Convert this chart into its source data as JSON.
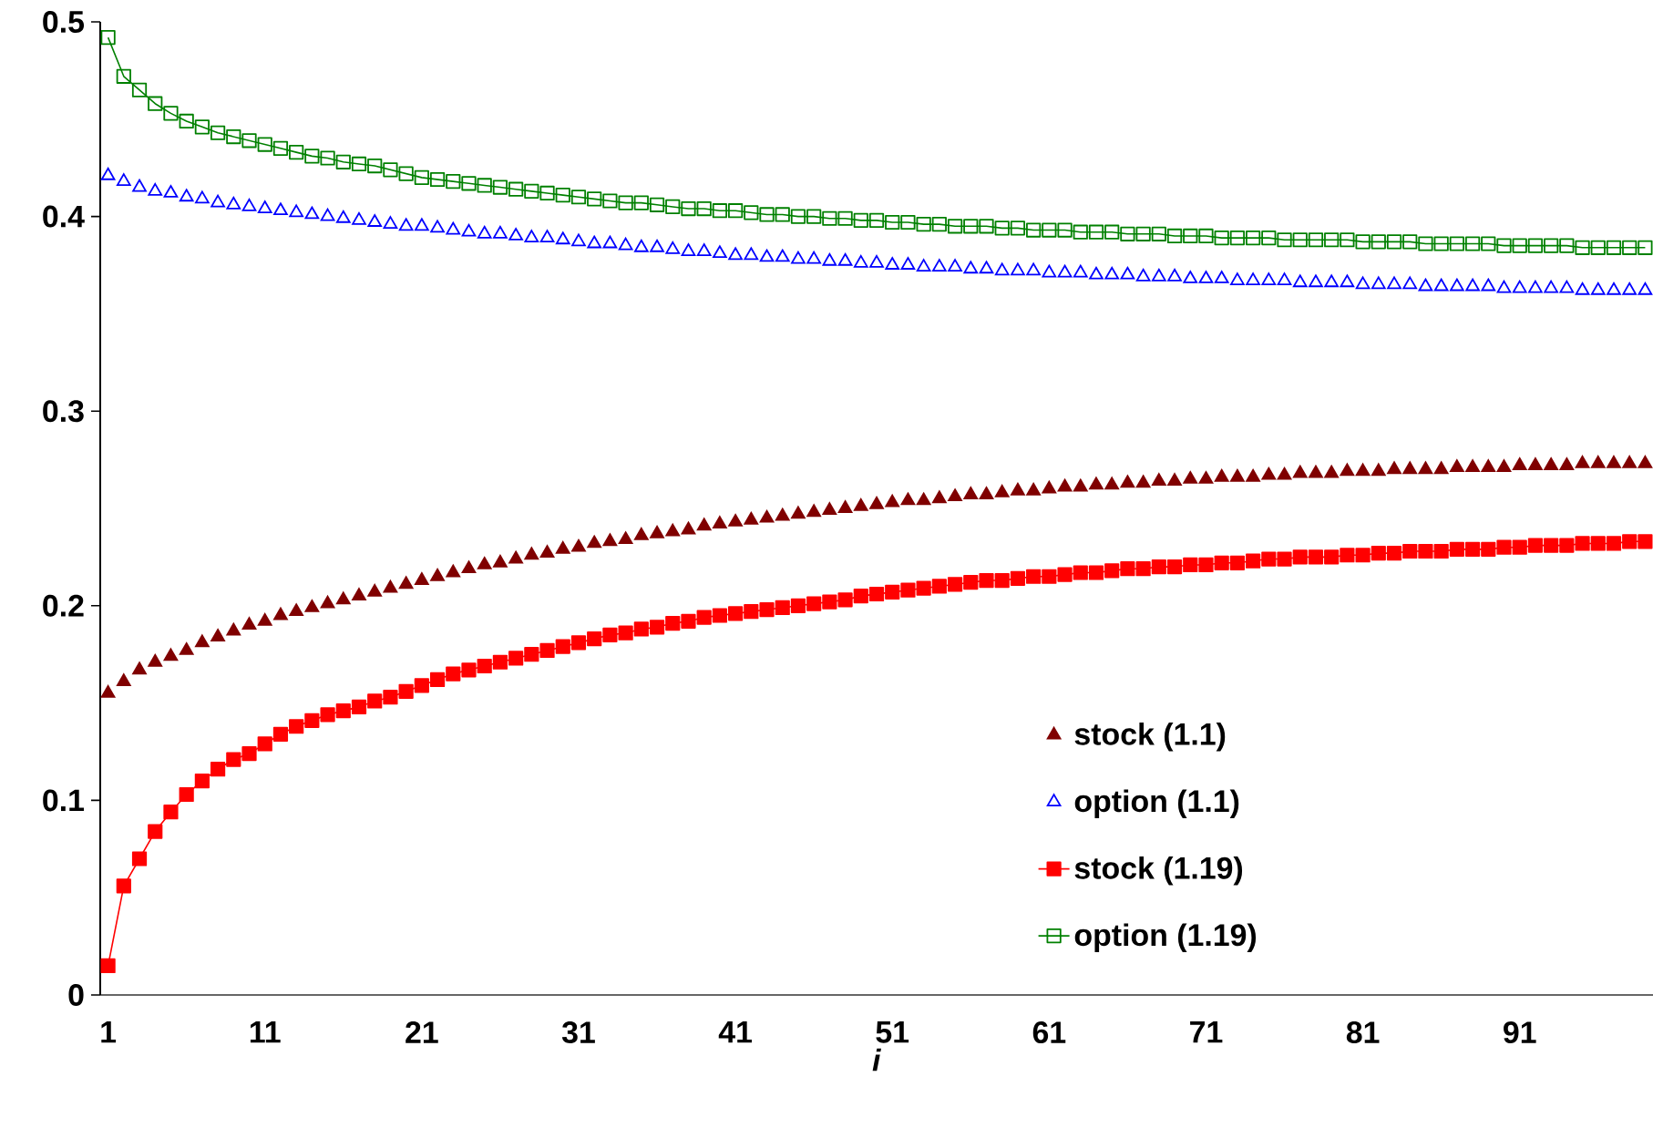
{
  "chart_data": {
    "type": "line",
    "xlabel": "*i*",
    "x": [
      1,
      2,
      3,
      4,
      5,
      6,
      7,
      8,
      9,
      10,
      11,
      12,
      13,
      14,
      15,
      16,
      17,
      18,
      19,
      20,
      21,
      22,
      23,
      24,
      25,
      26,
      27,
      28,
      29,
      30,
      31,
      32,
      33,
      34,
      35,
      36,
      37,
      38,
      39,
      40,
      41,
      42,
      43,
      44,
      45,
      46,
      47,
      48,
      49,
      50,
      51,
      52,
      53,
      54,
      55,
      56,
      57,
      58,
      59,
      60,
      61,
      62,
      63,
      64,
      65,
      66,
      67,
      68,
      69,
      70,
      71,
      72,
      73,
      74,
      75,
      76,
      77,
      78,
      79,
      80,
      81,
      82,
      83,
      84,
      85,
      86,
      87,
      88,
      89,
      90,
      91,
      92,
      93,
      94,
      95,
      96,
      97,
      98,
      99
    ],
    "xlim": [
      0.5,
      99.5
    ],
    "xticks": [
      1,
      11,
      21,
      31,
      41,
      51,
      61,
      71,
      81,
      91
    ],
    "ylim": [
      0,
      0.5
    ],
    "yticks": [
      0,
      0.1,
      0.2,
      0.3,
      0.4,
      0.5
    ],
    "legend": "bottom right",
    "series": [
      {
        "name": "stock (1.1)",
        "type": "scatter",
        "marker": "triangle",
        "color": "#800000",
        "values": [
          0.155,
          0.161,
          0.167,
          0.171,
          0.174,
          0.177,
          0.181,
          0.184,
          0.187,
          0.19,
          0.192,
          0.195,
          0.197,
          0.199,
          0.201,
          0.203,
          0.205,
          0.207,
          0.209,
          0.211,
          0.213,
          0.215,
          0.217,
          0.219,
          0.221,
          0.222,
          0.224,
          0.226,
          0.227,
          0.229,
          0.23,
          0.232,
          0.233,
          0.234,
          0.236,
          0.237,
          0.238,
          0.239,
          0.241,
          0.242,
          0.243,
          0.244,
          0.245,
          0.246,
          0.247,
          0.248,
          0.249,
          0.25,
          0.251,
          0.252,
          0.253,
          0.254,
          0.254,
          0.255,
          0.256,
          0.257,
          0.257,
          0.258,
          0.259,
          0.259,
          0.26,
          0.261,
          0.261,
          0.262,
          0.262,
          0.263,
          0.263,
          0.264,
          0.264,
          0.265,
          0.265,
          0.266,
          0.266,
          0.266,
          0.267,
          0.267,
          0.268,
          0.268,
          0.268,
          0.269,
          0.269,
          0.269,
          0.27,
          0.27,
          0.27,
          0.27,
          0.271,
          0.271,
          0.271,
          0.271,
          0.272,
          0.272,
          0.272,
          0.272,
          0.273,
          0.273,
          0.273,
          0.273,
          0.273
        ]
      },
      {
        "name": "option (1.1)",
        "type": "scatter",
        "marker": "triangle",
        "color": "#0000ff",
        "values": [
          0.421,
          0.418,
          0.415,
          0.413,
          0.412,
          0.41,
          0.409,
          0.407,
          0.406,
          0.405,
          0.404,
          0.403,
          0.402,
          0.401,
          0.4,
          0.399,
          0.398,
          0.397,
          0.396,
          0.395,
          0.395,
          0.394,
          0.393,
          0.392,
          0.391,
          0.391,
          0.39,
          0.389,
          0.389,
          0.388,
          0.387,
          0.386,
          0.386,
          0.385,
          0.384,
          0.384,
          0.383,
          0.382,
          0.382,
          0.381,
          0.38,
          0.38,
          0.379,
          0.379,
          0.378,
          0.378,
          0.377,
          0.377,
          0.376,
          0.376,
          0.375,
          0.375,
          0.374,
          0.374,
          0.374,
          0.373,
          0.373,
          0.372,
          0.372,
          0.372,
          0.371,
          0.371,
          0.371,
          0.37,
          0.37,
          0.37,
          0.369,
          0.369,
          0.369,
          0.368,
          0.368,
          0.368,
          0.367,
          0.367,
          0.367,
          0.367,
          0.366,
          0.366,
          0.366,
          0.366,
          0.365,
          0.365,
          0.365,
          0.365,
          0.364,
          0.364,
          0.364,
          0.364,
          0.364,
          0.363,
          0.363,
          0.363,
          0.363,
          0.363,
          0.362,
          0.362,
          0.362,
          0.362,
          0.362
        ]
      },
      {
        "name": "stock (1.19)",
        "marker": "square",
        "color": "#ff0000",
        "values": [
          0.015,
          0.056,
          0.07,
          0.084,
          0.094,
          0.103,
          0.11,
          0.116,
          0.121,
          0.124,
          0.129,
          0.134,
          0.138,
          0.141,
          0.144,
          0.146,
          0.148,
          0.151,
          0.153,
          0.156,
          0.159,
          0.162,
          0.165,
          0.167,
          0.169,
          0.171,
          0.173,
          0.175,
          0.177,
          0.179,
          0.181,
          0.183,
          0.185,
          0.186,
          0.188,
          0.189,
          0.191,
          0.192,
          0.194,
          0.195,
          0.196,
          0.197,
          0.198,
          0.199,
          0.2,
          0.201,
          0.202,
          0.203,
          0.205,
          0.206,
          0.207,
          0.208,
          0.209,
          0.21,
          0.211,
          0.212,
          0.213,
          0.213,
          0.214,
          0.215,
          0.215,
          0.216,
          0.217,
          0.217,
          0.218,
          0.219,
          0.219,
          0.22,
          0.22,
          0.221,
          0.221,
          0.222,
          0.222,
          0.223,
          0.224,
          0.224,
          0.225,
          0.225,
          0.225,
          0.226,
          0.226,
          0.227,
          0.227,
          0.228,
          0.228,
          0.228,
          0.229,
          0.229,
          0.229,
          0.23,
          0.23,
          0.231,
          0.231,
          0.231,
          0.232,
          0.232,
          0.232,
          0.233,
          0.233
        ]
      },
      {
        "name": "option (1.19)",
        "marker": "square",
        "color": "#008000",
        "values": [
          0.492,
          0.472,
          0.465,
          0.458,
          0.453,
          0.449,
          0.446,
          0.443,
          0.441,
          0.439,
          0.437,
          0.435,
          0.433,
          0.431,
          0.43,
          0.428,
          0.427,
          0.426,
          0.424,
          0.422,
          0.42,
          0.419,
          0.418,
          0.417,
          0.416,
          0.415,
          0.414,
          0.413,
          0.412,
          0.411,
          0.41,
          0.409,
          0.408,
          0.407,
          0.407,
          0.406,
          0.405,
          0.404,
          0.404,
          0.403,
          0.403,
          0.402,
          0.401,
          0.401,
          0.4,
          0.4,
          0.399,
          0.399,
          0.398,
          0.398,
          0.397,
          0.397,
          0.396,
          0.396,
          0.395,
          0.395,
          0.395,
          0.394,
          0.394,
          0.393,
          0.393,
          0.393,
          0.392,
          0.392,
          0.392,
          0.391,
          0.391,
          0.391,
          0.39,
          0.39,
          0.39,
          0.389,
          0.389,
          0.389,
          0.389,
          0.388,
          0.388,
          0.388,
          0.388,
          0.388,
          0.387,
          0.387,
          0.387,
          0.387,
          0.386,
          0.386,
          0.386,
          0.386,
          0.386,
          0.385,
          0.385,
          0.385,
          0.385,
          0.385,
          0.384,
          0.384,
          0.384,
          0.384,
          0.384
        ]
      }
    ]
  }
}
